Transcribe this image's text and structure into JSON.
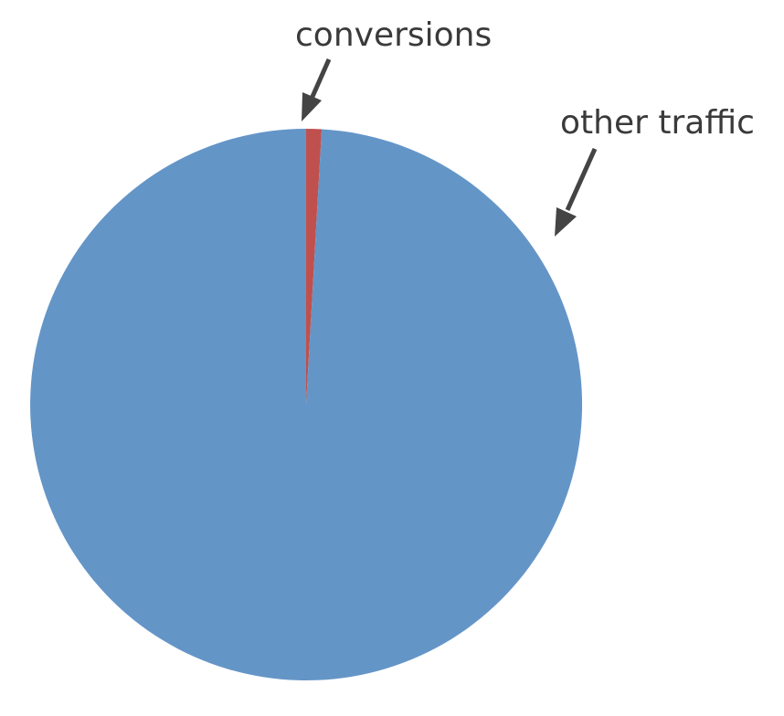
{
  "chart_data": {
    "type": "pie",
    "title": "",
    "slices": [
      {
        "label": "conversions",
        "value": 0.9,
        "color": "#C0504D"
      },
      {
        "label": "other traffic",
        "value": 99.1,
        "color": "#6495C7"
      }
    ],
    "start_angle_deg": 0,
    "direction": "clockwise",
    "legend": "none"
  }
}
